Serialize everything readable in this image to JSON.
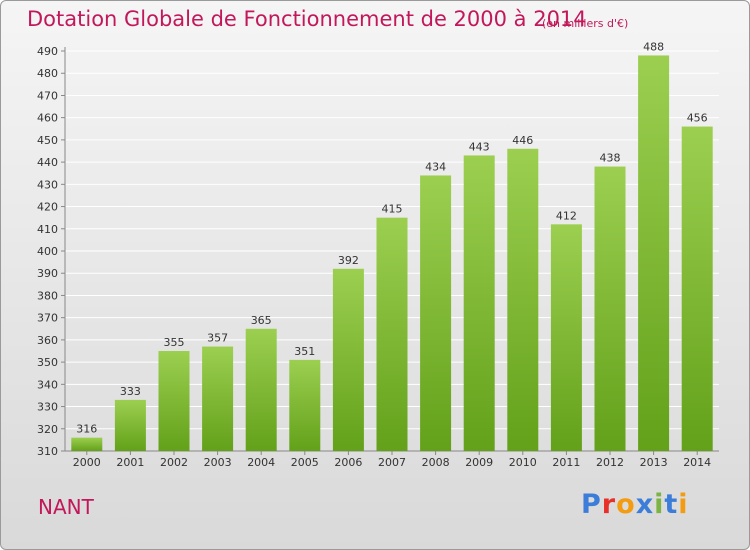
{
  "header": {
    "title": "Dotation Globale de Fonctionnement de 2000 à 2014",
    "unit": "(en milliers d'€)"
  },
  "footer": {
    "commune": "NANT",
    "logo": "Proxiti"
  },
  "colors": {
    "title": "#c2185b",
    "bar_top": "#9ccf50",
    "bar_bottom": "#63a11a",
    "logo_letters": [
      "#3b7dd8",
      "#e8302a",
      "#f39c12",
      "#3b7dd8",
      "#7cb342",
      "#3b7dd8",
      "#f39c12"
    ]
  },
  "chart_data": {
    "type": "bar",
    "categories": [
      "2000",
      "2001",
      "2002",
      "2003",
      "2004",
      "2005",
      "2006",
      "2007",
      "2008",
      "2009",
      "2010",
      "2011",
      "2012",
      "2013",
      "2014"
    ],
    "values": [
      316,
      333,
      355,
      357,
      365,
      351,
      392,
      415,
      434,
      443,
      446,
      412,
      438,
      488,
      456
    ],
    "ylim": [
      310,
      490
    ],
    "yticks": [
      310,
      320,
      330,
      340,
      350,
      360,
      370,
      380,
      390,
      400,
      410,
      420,
      430,
      440,
      450,
      460,
      470,
      480,
      490
    ],
    "grid": true,
    "data_labels": true
  }
}
